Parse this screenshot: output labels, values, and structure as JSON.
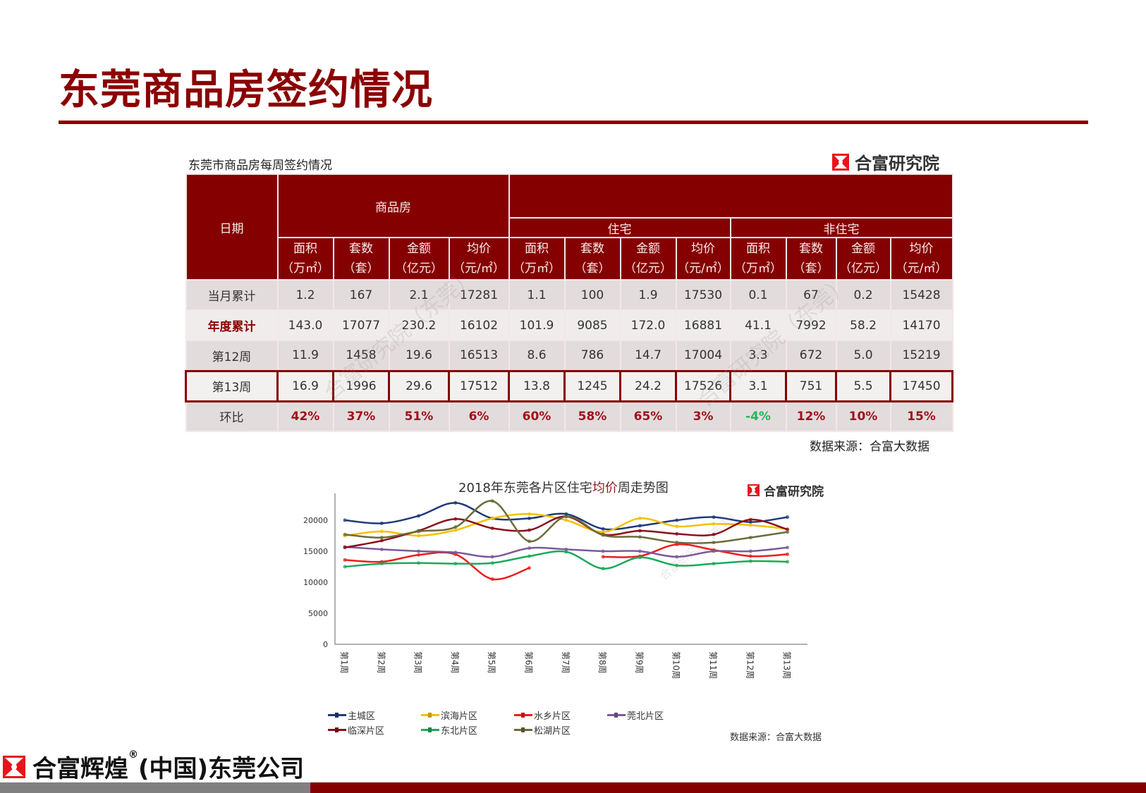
{
  "page": {
    "title": "东莞商品房签约情况"
  },
  "table_section": {
    "caption": "东莞市商品房每周签约情况",
    "brand": "合富研究院",
    "header": {
      "date_label": "日期",
      "group_commodity": "商品房",
      "group_residential": "住宅",
      "group_nonresidential": "非住宅",
      "columns": [
        {
          "name": "面积",
          "unit": "（万㎡）"
        },
        {
          "name": "套数",
          "unit": "（套）"
        },
        {
          "name": "金额",
          "unit": "（亿元）"
        },
        {
          "name": "均价",
          "unit": "（元/㎡）"
        },
        {
          "name": "面积",
          "unit": "（万㎡）"
        },
        {
          "name": "套数",
          "unit": "（套）"
        },
        {
          "name": "金额",
          "unit": "（亿元）"
        },
        {
          "name": "均价",
          "unit": "（元/㎡）"
        },
        {
          "name": "面积",
          "unit": "（万㎡）"
        },
        {
          "name": "套数",
          "unit": "（套）"
        },
        {
          "name": "金额",
          "unit": "（亿元）"
        },
        {
          "name": "均价",
          "unit": "（元/㎡）"
        }
      ]
    },
    "rows": [
      {
        "label": "当月累计",
        "values": [
          "1.2",
          "167",
          "2.1",
          "17281",
          "1.1",
          "100",
          "1.9",
          "17530",
          "0.1",
          "67",
          "0.2",
          "15428"
        ]
      },
      {
        "label": "年度累计",
        "values": [
          "143.0",
          "17077",
          "230.2",
          "16102",
          "101.9",
          "9085",
          "172.0",
          "16881",
          "41.1",
          "7992",
          "58.2",
          "14170"
        ]
      },
      {
        "label": "第12周",
        "values": [
          "11.9",
          "1458",
          "19.6",
          "16513",
          "8.6",
          "786",
          "14.7",
          "17004",
          "3.3",
          "672",
          "5.0",
          "15219"
        ]
      },
      {
        "label": "第13周",
        "values": [
          "16.9",
          "1996",
          "29.6",
          "17512",
          "13.8",
          "1245",
          "24.2",
          "17526",
          "3.1",
          "751",
          "5.5",
          "17450"
        ]
      },
      {
        "label": "环比",
        "values": [
          "42%",
          "37%",
          "51%",
          "6%",
          "60%",
          "58%",
          "65%",
          "3%",
          "-4%",
          "12%",
          "10%",
          "15%"
        ]
      }
    ],
    "source": "数据来源：合富大数据"
  },
  "chart_section": {
    "title_prefix": "2018年东莞各片区住宅",
    "title_highlight": "均价",
    "title_suffix": "周走势图",
    "brand": "合富研究院",
    "source": "数据来源：合富大数据"
  },
  "chart_data": {
    "type": "line",
    "title": "2018年东莞各片区住宅均价周走势图",
    "xlabel": "",
    "ylabel": "",
    "ylim": [
      0,
      25000
    ],
    "yticks": [
      0,
      5000,
      10000,
      15000,
      20000,
      25000
    ],
    "grid": false,
    "legend_position": "bottom",
    "categories": [
      "第1周",
      "第2周",
      "第3周",
      "第4周",
      "第5周",
      "第6周",
      "第7周",
      "第8周",
      "第9周",
      "第10周",
      "第11周",
      "第12周",
      "第13周"
    ],
    "series": [
      {
        "name": "主城区",
        "color": "#1f3a7a",
        "values": [
          20000,
          19500,
          20700,
          22800,
          20300,
          20300,
          21000,
          18600,
          19100,
          20000,
          20500,
          19700,
          20500
        ]
      },
      {
        "name": "滨海片区",
        "color": "#f5c000",
        "values": [
          17500,
          18200,
          17500,
          18400,
          20300,
          21000,
          20000,
          18100,
          20300,
          19000,
          19400,
          19200,
          18600
        ]
      },
      {
        "name": "水乡片区",
        "color": "#ee1c1c",
        "values": [
          13600,
          13300,
          14400,
          14500,
          10500,
          12300,
          null,
          14100,
          14200,
          16100,
          15200,
          14200,
          14500
        ]
      },
      {
        "name": "莞北片区",
        "color": "#7b5a9a",
        "values": [
          15700,
          15300,
          15000,
          14800,
          14100,
          15500,
          15300,
          15000,
          15000,
          14100,
          15000,
          15000,
          15600
        ]
      },
      {
        "name": "临深片区",
        "color": "#8b0d1a",
        "values": [
          15600,
          16700,
          18300,
          20200,
          18700,
          18400,
          20600,
          17700,
          18300,
          17800,
          17700,
          20100,
          18500
        ]
      },
      {
        "name": "东北片区",
        "color": "#1aaa5a",
        "values": [
          12500,
          13000,
          13100,
          13000,
          13100,
          14200,
          14900,
          12200,
          14000,
          12700,
          13000,
          13400,
          13300
        ]
      },
      {
        "name": "松湖片区",
        "color": "#6b6b3a",
        "values": [
          17700,
          17200,
          18200,
          18900,
          23100,
          16600,
          20600,
          17600,
          17300,
          16400,
          16400,
          17200,
          18100
        ]
      }
    ]
  },
  "footer": {
    "brand_name": "合富辉煌",
    "registered": "®",
    "brand_suffix": "(中国)东莞公司"
  },
  "watermarks": [
    "合富研究院（东莞）",
    "合富研究院（东莞）",
    "合富研究院（东莞）"
  ]
}
